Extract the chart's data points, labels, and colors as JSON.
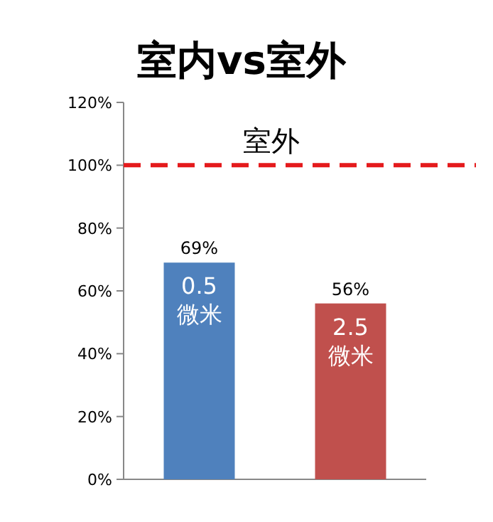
{
  "chart_data": {
    "type": "bar",
    "title": "室内vs室外",
    "categories": [
      "0.5 微米",
      "2.5 微米"
    ],
    "values": [
      69,
      56
    ],
    "colors": [
      "#4f81bd",
      "#c0504d"
    ],
    "value_labels": [
      "69%",
      "56%"
    ],
    "ylim": [
      0,
      120
    ],
    "yticks": [
      {
        "value": 0,
        "label": "0%"
      },
      {
        "value": 20,
        "label": "20%"
      },
      {
        "value": 40,
        "label": "40%"
      },
      {
        "value": 60,
        "label": "60%"
      },
      {
        "value": 80,
        "label": "80%"
      },
      {
        "value": 100,
        "label": "100%"
      },
      {
        "value": 120,
        "label": "120%"
      }
    ],
    "ref_lines": [
      {
        "axis": "y",
        "value": 100,
        "label": "室外",
        "color": "#e41a1c",
        "line_style": "dashed"
      }
    ],
    "grid": false
  }
}
